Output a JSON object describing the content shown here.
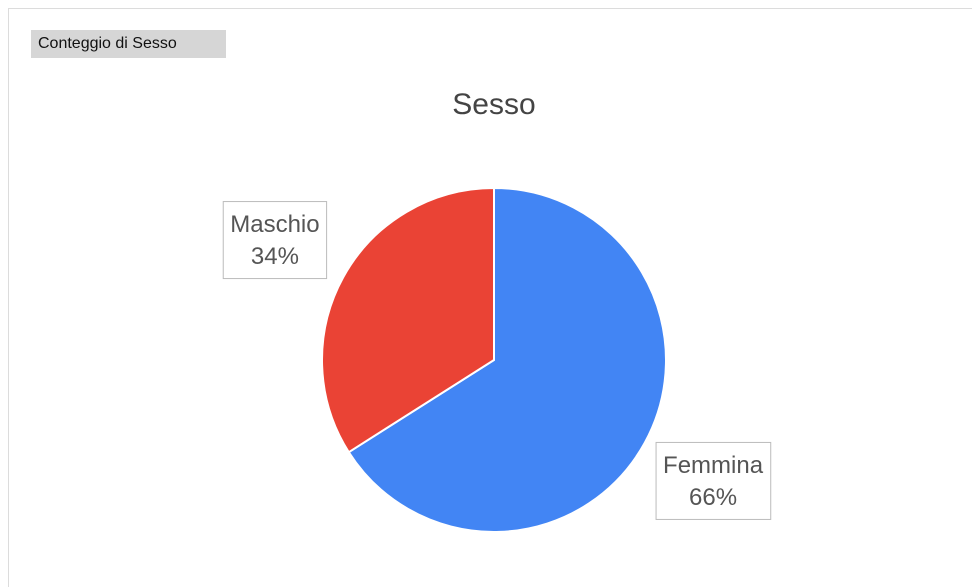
{
  "header": {
    "label": "Conteggio di Sesso"
  },
  "chart_data": {
    "type": "pie",
    "title": "Sesso",
    "categories": [
      "Femmina",
      "Maschio"
    ],
    "values": [
      66,
      34
    ],
    "value_labels": [
      "66%",
      "34%"
    ],
    "colors": [
      "#4285f4",
      "#ea4335"
    ]
  }
}
